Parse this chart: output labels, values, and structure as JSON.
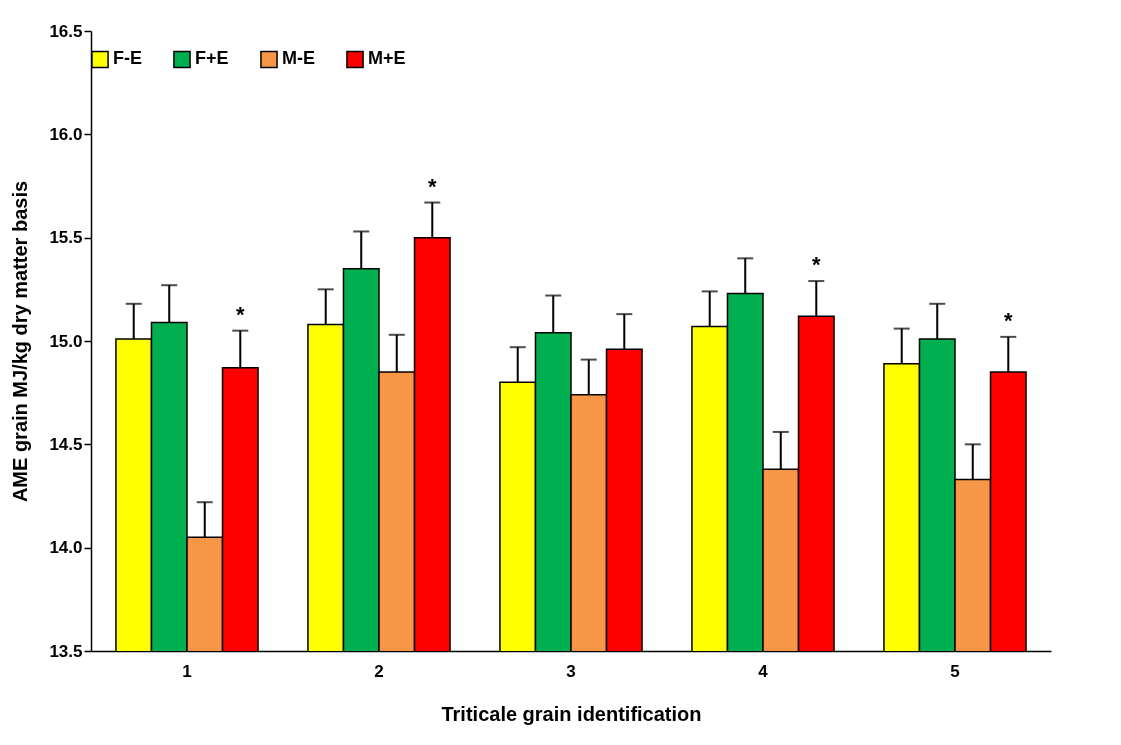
{
  "chart_data": {
    "type": "bar",
    "xlabel": "Triticale grain identification",
    "ylabel": "AME grain MJ/kg dry matter basis",
    "categories": [
      "1",
      "2",
      "3",
      "4",
      "5"
    ],
    "series": [
      {
        "name": "F-E",
        "color": "#ffff00",
        "values": [
          15.01,
          15.08,
          14.8,
          15.07,
          14.89
        ],
        "errors": [
          [
            15.01,
            15.18
          ],
          [
            15.08,
            15.25
          ],
          [
            14.8,
            14.97
          ],
          [
            15.07,
            15.24
          ],
          [
            14.89,
            15.06
          ]
        ]
      },
      {
        "name": "F+E",
        "color": "#00b050",
        "values": [
          15.09,
          15.35,
          15.04,
          15.23,
          15.01
        ],
        "errors": [
          [
            15.09,
            15.27
          ],
          [
            15.35,
            15.53
          ],
          [
            15.04,
            15.22
          ],
          [
            15.23,
            15.4
          ],
          [
            15.01,
            15.18
          ]
        ]
      },
      {
        "name": "M-E",
        "color": "#f79646",
        "values": [
          14.05,
          14.85,
          14.74,
          14.38,
          14.33
        ],
        "errors": [
          [
            14.05,
            14.22
          ],
          [
            14.85,
            15.03
          ],
          [
            14.74,
            14.91
          ],
          [
            14.38,
            14.56
          ],
          [
            14.33,
            14.5
          ]
        ]
      },
      {
        "name": "M+E",
        "color": "#ff0000",
        "values": [
          14.87,
          15.5,
          14.96,
          15.12,
          14.85
        ],
        "value_labels": [
          "*",
          "*",
          null,
          "*",
          "*"
        ],
        "errors": [
          [
            14.87,
            15.05
          ],
          [
            15.5,
            15.67
          ],
          [
            14.96,
            15.13
          ],
          [
            15.12,
            15.29
          ],
          [
            14.85,
            15.02
          ]
        ]
      }
    ],
    "ylim": [
      13.5,
      16.5
    ],
    "yticks": [
      {
        "value": 13.5,
        "label": "13.5"
      },
      {
        "value": 14,
        "label": "14.0"
      },
      {
        "value": 14.5,
        "label": "14.5"
      },
      {
        "value": 15,
        "label": "15.0"
      },
      {
        "value": 15.5,
        "label": "15.5"
      },
      {
        "value": 16,
        "label": "16.0"
      },
      {
        "value": 16.5,
        "label": "16.5"
      }
    ],
    "grid": false,
    "legend": "top"
  }
}
